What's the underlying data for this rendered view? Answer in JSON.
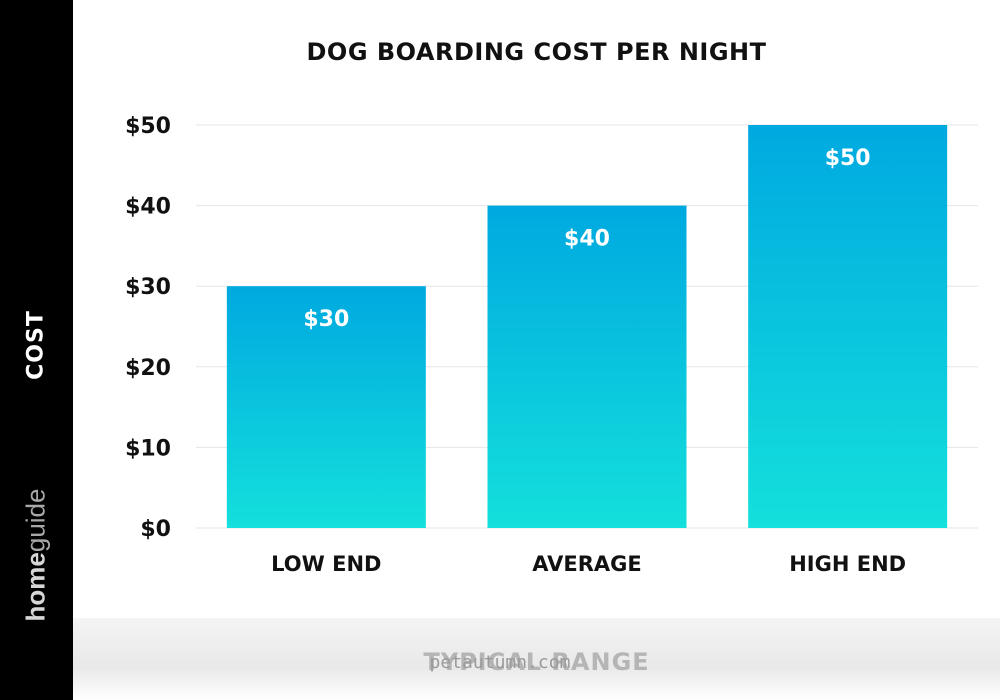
{
  "chart_data": {
    "type": "bar",
    "title": "DOG BOARDING COST PER NIGHT",
    "xlabel": "",
    "ylabel": "COST",
    "categories": [
      "LOW END",
      "AVERAGE",
      "HIGH END"
    ],
    "values": [
      30,
      40,
      50
    ],
    "data_labels": [
      "$30",
      "$40",
      "$50"
    ],
    "ylim": [
      0,
      50
    ],
    "yticks": [
      0,
      10,
      20,
      30,
      40,
      50
    ],
    "ytick_labels": [
      "$0",
      "$10",
      "$20",
      "$30",
      "$40",
      "$50"
    ],
    "grid": true,
    "legend": "none",
    "colors": {
      "bar_top": "#00a9e0",
      "bar_bottom": "#14e0dc",
      "grid": "#e6e6e6",
      "band": "#000000"
    }
  },
  "branding": {
    "home": "home",
    "guide": "guide"
  },
  "footer": {
    "partial_text": "TYPICAL RANGE",
    "watermark": "petautumn.com"
  }
}
